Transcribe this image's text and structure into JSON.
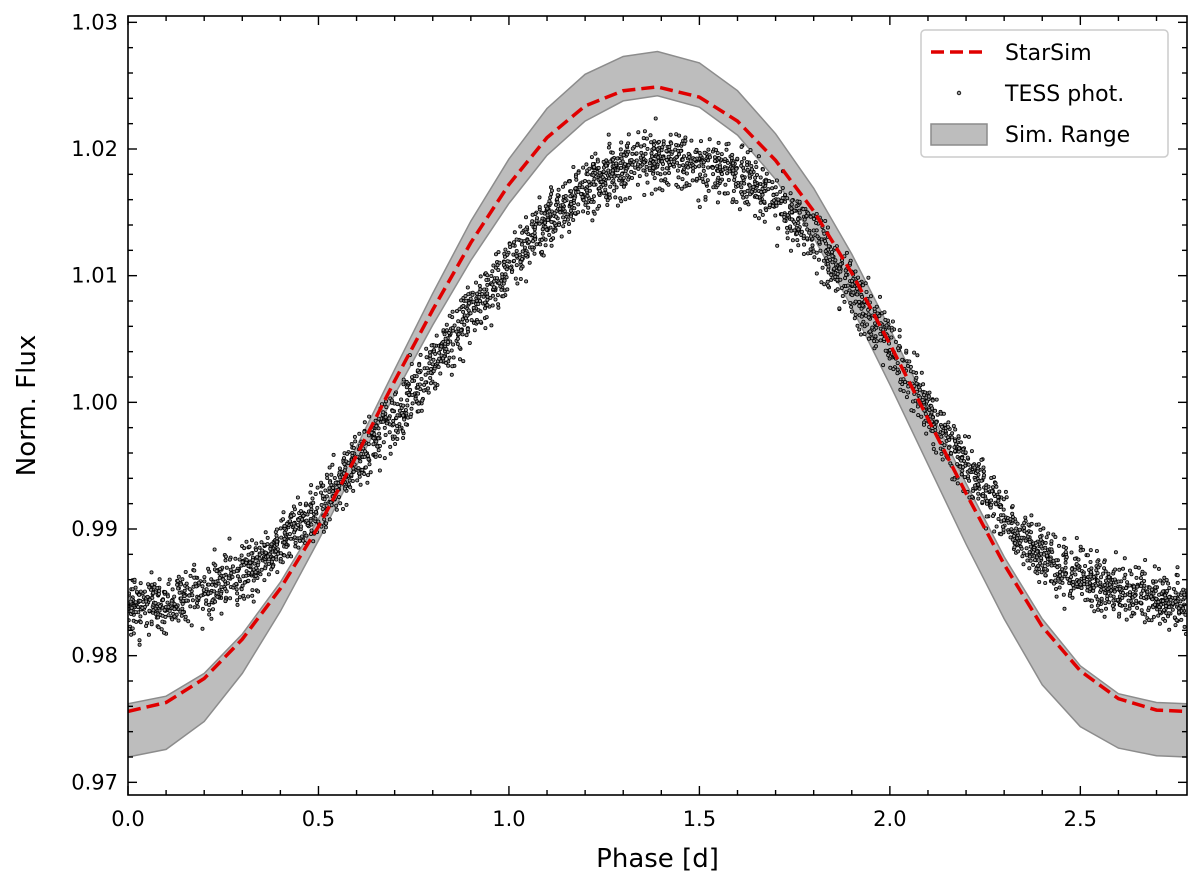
{
  "chart_data": {
    "type": "scatter",
    "title": "",
    "xlabel": "Phase [d]",
    "ylabel": "Norm. Flux",
    "xlim": [
      0.0,
      2.78
    ],
    "ylim": [
      0.969,
      1.0305
    ],
    "xticks": [
      0.0,
      0.5,
      1.0,
      1.5,
      2.0,
      2.5
    ],
    "xtick_labels": [
      "0.0",
      "0.5",
      "1.0",
      "1.5",
      "2.0",
      "2.5"
    ],
    "yticks": [
      0.97,
      0.98,
      0.99,
      1.0,
      1.01,
      1.02,
      1.03
    ],
    "ytick_labels": [
      "0.97",
      "0.98",
      "0.99",
      "1.00",
      "1.01",
      "1.02",
      "1.03"
    ],
    "legend_position": "top-right",
    "legend": [
      {
        "label": "StarSim",
        "style": "dashed-line",
        "color": "#e00000"
      },
      {
        "label": "TESS phot.",
        "style": "marker",
        "color": "#000000"
      },
      {
        "label": "Sim. Range",
        "style": "patch",
        "color": "#bdbdbd"
      }
    ],
    "series": [
      {
        "name": "StarSim",
        "kind": "line",
        "color": "#e00000",
        "x": [
          0.0,
          0.1,
          0.2,
          0.3,
          0.4,
          0.5,
          0.6,
          0.7,
          0.8,
          0.9,
          1.0,
          1.1,
          1.2,
          1.3,
          1.39,
          1.5,
          1.6,
          1.7,
          1.8,
          1.9,
          2.0,
          2.1,
          2.2,
          2.3,
          2.4,
          2.5,
          2.6,
          2.7,
          2.78
        ],
        "y": [
          0.9756,
          0.9763,
          0.9782,
          0.9813,
          0.9853,
          0.9902,
          0.9958,
          1.0017,
          1.0073,
          1.0126,
          1.0172,
          1.0209,
          1.0234,
          1.0246,
          1.0249,
          1.0241,
          1.0222,
          1.0191,
          1.0151,
          1.0102,
          1.0046,
          0.9987,
          0.9928,
          0.9872,
          0.9823,
          0.9788,
          0.9766,
          0.9757,
          0.9756
        ]
      },
      {
        "name": "Sim. Range",
        "kind": "band",
        "color": "#bdbdbd",
        "x": [
          0.0,
          0.1,
          0.2,
          0.3,
          0.4,
          0.5,
          0.6,
          0.7,
          0.8,
          0.9,
          1.0,
          1.1,
          1.2,
          1.3,
          1.39,
          1.5,
          1.6,
          1.7,
          1.8,
          1.9,
          2.0,
          2.1,
          2.2,
          2.3,
          2.4,
          2.5,
          2.6,
          2.7,
          2.78
        ],
        "upper": [
          0.9762,
          0.9768,
          0.9786,
          0.9817,
          0.9858,
          0.9908,
          0.9965,
          1.0026,
          1.0086,
          1.0143,
          1.0192,
          1.0232,
          1.0259,
          1.0273,
          1.0277,
          1.0268,
          1.0246,
          1.0212,
          1.0169,
          1.0117,
          1.0058,
          0.9997,
          0.9936,
          0.9878,
          0.9829,
          0.9792,
          0.977,
          0.9763,
          0.9762
        ],
        "lower": [
          0.972,
          0.9726,
          0.9748,
          0.9786,
          0.9835,
          0.9891,
          0.995,
          1.0006,
          1.0061,
          1.0112,
          1.0157,
          1.0195,
          1.0222,
          1.0238,
          1.0242,
          1.0233,
          1.0211,
          1.0176,
          1.013,
          1.0075,
          1.0014,
          0.9951,
          0.9888,
          0.9829,
          0.9777,
          0.9744,
          0.9727,
          0.9721,
          0.972
        ]
      },
      {
        "name": "TESS phot.",
        "kind": "scatter",
        "color": "#000000",
        "n_points": 3600,
        "x_range": [
          0.0,
          2.78
        ],
        "x_centerline": [
          0.0,
          0.1,
          0.2,
          0.3,
          0.4,
          0.5,
          0.6,
          0.7,
          0.8,
          0.9,
          1.0,
          1.1,
          1.2,
          1.3,
          1.45,
          1.6,
          1.7,
          1.8,
          1.9,
          2.0,
          2.1,
          2.2,
          2.3,
          2.4,
          2.5,
          2.6,
          2.7,
          2.78
        ],
        "y_centerline": [
          0.984,
          0.9842,
          0.985,
          0.9866,
          0.9888,
          0.9917,
          0.9952,
          0.999,
          1.003,
          1.007,
          1.0108,
          1.0143,
          1.017,
          1.0186,
          1.0192,
          1.018,
          1.016,
          1.013,
          1.009,
          1.0045,
          0.9995,
          0.995,
          0.991,
          0.988,
          0.9862,
          0.9852,
          0.9846,
          0.9842
        ],
        "scatter_sigma": 0.0011
      }
    ]
  }
}
